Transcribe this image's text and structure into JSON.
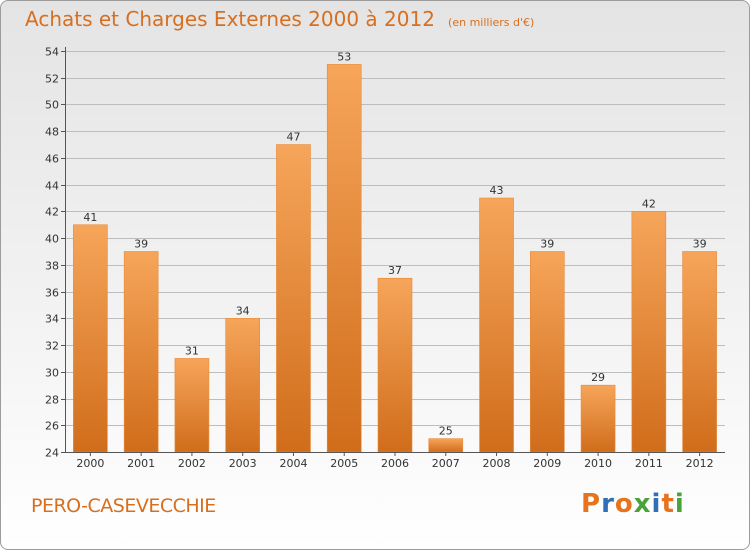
{
  "chart_data": {
    "type": "bar",
    "title": "Achats et Charges Externes 2000 à 2012",
    "unit_label": "(en milliers d'€)",
    "categories": [
      "2000",
      "2001",
      "2002",
      "2003",
      "2004",
      "2005",
      "2006",
      "2007",
      "2008",
      "2009",
      "2010",
      "2011",
      "2012"
    ],
    "values": [
      41,
      39,
      31,
      34,
      47,
      53,
      37,
      25,
      43,
      39,
      29,
      42,
      39
    ],
    "ylim": [
      24,
      54
    ],
    "yticks": [
      24,
      26,
      28,
      30,
      32,
      34,
      36,
      38,
      40,
      42,
      44,
      46,
      48,
      50,
      52,
      54
    ],
    "xlabel": "",
    "ylabel": "",
    "grid": true,
    "data_labels": true,
    "bar_color": "#f0923d",
    "bar_color_dark": "#d06d1b",
    "grid_color": "#bdbdbd"
  },
  "footer": {
    "commune": "PERO-CASEVECCHIE",
    "brand": "Proxiti"
  },
  "colors": {
    "accent": "#d76f1f"
  }
}
